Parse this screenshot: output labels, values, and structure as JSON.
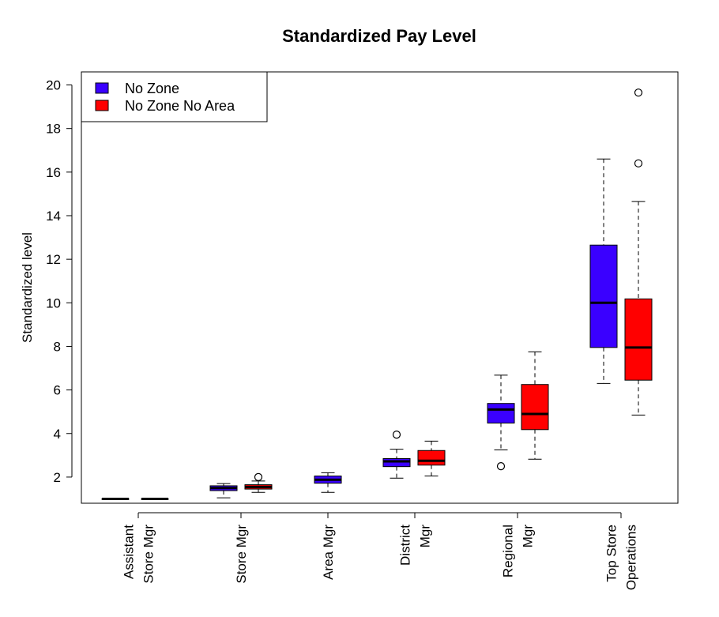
{
  "chart_data": {
    "type": "boxplot",
    "title": "Standardized Pay Level",
    "xlabel": "",
    "ylabel": "Standardized level",
    "ylim": [
      0.8,
      20.6
    ],
    "yticks": [
      2,
      4,
      6,
      8,
      10,
      12,
      14,
      16,
      18,
      20
    ],
    "grid": false,
    "legend_position": "top-left",
    "categories": [
      {
        "lines": [
          "Assistant",
          "Store Mgr"
        ]
      },
      {
        "lines": [
          "Store Mgr"
        ]
      },
      {
        "lines": [
          "Area Mgr"
        ]
      },
      {
        "lines": [
          "District",
          "Mgr"
        ]
      },
      {
        "lines": [
          "Regional",
          "Mgr"
        ]
      },
      {
        "lines": [
          "Top Store",
          "Operations"
        ]
      }
    ],
    "series": [
      {
        "name": "No Zone",
        "color": "#3a00ff",
        "boxes": [
          {
            "category": 0,
            "whisker_low": 1.0,
            "q1": 1.0,
            "median": 1.0,
            "q3": 1.0,
            "whisker_high": 1.0,
            "outliers": []
          },
          {
            "category": 1,
            "whisker_low": 1.05,
            "q1": 1.38,
            "median": 1.5,
            "q3": 1.6,
            "whisker_high": 1.7,
            "outliers": []
          },
          {
            "category": 2,
            "whisker_low": 1.3,
            "q1": 1.72,
            "median": 1.88,
            "q3": 2.05,
            "whisker_high": 2.2,
            "outliers": []
          },
          {
            "category": 3,
            "whisker_low": 1.95,
            "q1": 2.48,
            "median": 2.72,
            "q3": 2.85,
            "whisker_high": 3.28,
            "outliers": [
              3.95
            ]
          },
          {
            "category": 4,
            "whisker_low": 3.25,
            "q1": 4.48,
            "median": 5.1,
            "q3": 5.38,
            "whisker_high": 6.68,
            "outliers": [
              2.5
            ]
          },
          {
            "category": 5,
            "whisker_low": 6.3,
            "q1": 7.95,
            "median": 10.0,
            "q3": 12.65,
            "whisker_high": 16.6,
            "outliers": []
          }
        ]
      },
      {
        "name": "No Zone No Area",
        "color": "#ff0000",
        "boxes": [
          {
            "category": 0,
            "whisker_low": 1.0,
            "q1": 1.0,
            "median": 1.0,
            "q3": 1.0,
            "whisker_high": 1.0,
            "outliers": []
          },
          {
            "category": 1,
            "whisker_low": 1.3,
            "q1": 1.45,
            "median": 1.55,
            "q3": 1.65,
            "whisker_high": 1.82,
            "outliers": [
              2.0
            ]
          },
          {
            "category": 3,
            "whisker_low": 2.05,
            "q1": 2.55,
            "median": 2.75,
            "q3": 3.22,
            "whisker_high": 3.65,
            "outliers": []
          },
          {
            "category": 4,
            "whisker_low": 2.82,
            "q1": 4.18,
            "median": 4.9,
            "q3": 6.25,
            "whisker_high": 7.75,
            "outliers": []
          },
          {
            "category": 5,
            "whisker_low": 4.85,
            "q1": 6.45,
            "median": 7.95,
            "q3": 10.18,
            "whisker_high": 14.65,
            "outliers": [
              16.4,
              19.65
            ]
          }
        ]
      }
    ]
  }
}
